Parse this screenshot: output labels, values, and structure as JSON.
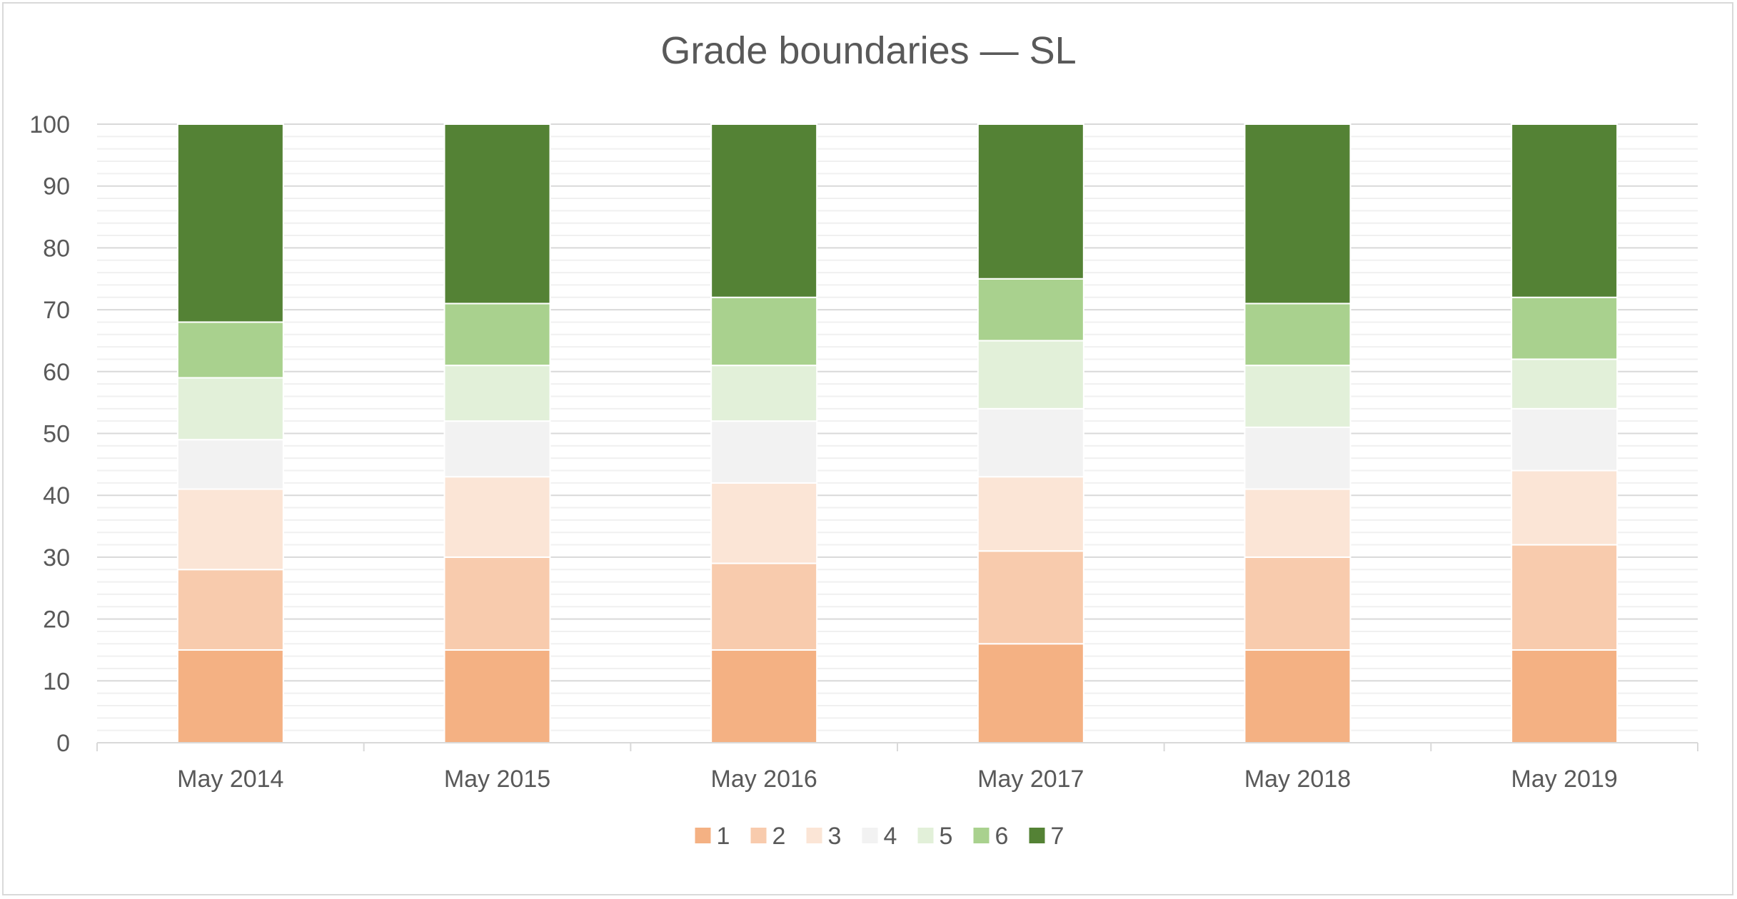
{
  "chart_data": {
    "type": "bar",
    "stacked": true,
    "title": "Grade boundaries — SL",
    "xlabel": "",
    "ylabel": "",
    "ylim": [
      0,
      100
    ],
    "yticks": [
      0,
      10,
      20,
      30,
      40,
      50,
      60,
      70,
      80,
      90,
      100
    ],
    "grid": true,
    "legend_position": "bottom",
    "categories": [
      "May 2014",
      "May 2015",
      "May 2016",
      "May 2017",
      "May 2018",
      "May 2019"
    ],
    "series": [
      {
        "name": "1",
        "color": "#F4B183",
        "values": [
          15,
          15,
          15,
          16,
          15,
          15
        ]
      },
      {
        "name": "2",
        "color": "#F8CBAD",
        "values": [
          13,
          15,
          14,
          15,
          15,
          17
        ]
      },
      {
        "name": "3",
        "color": "#FBE5D6",
        "values": [
          13,
          13,
          13,
          12,
          11,
          12
        ]
      },
      {
        "name": "4",
        "color": "#F2F2F2",
        "values": [
          8,
          9,
          10,
          11,
          10,
          10
        ]
      },
      {
        "name": "5",
        "color": "#E2F0D9",
        "values": [
          10,
          9,
          9,
          11,
          10,
          8
        ]
      },
      {
        "name": "6",
        "color": "#A9D18E",
        "values": [
          9,
          10,
          11,
          10,
          10,
          10
        ]
      },
      {
        "name": "7",
        "color": "#548235",
        "values": [
          32,
          29,
          28,
          25,
          29,
          28
        ]
      }
    ]
  }
}
